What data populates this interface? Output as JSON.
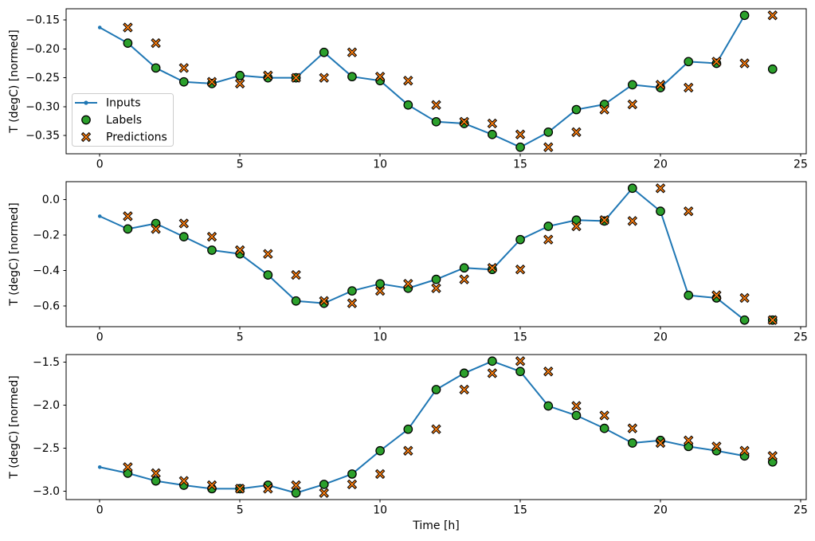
{
  "figure": {
    "xlabel": "Time [h]",
    "ylabel": "T (degC) [normed]",
    "background": "#ffffff",
    "colors": {
      "inputs_line": "#1f77b4",
      "labels_marker": "#2ca02c",
      "predictions_marker": "#ff7f0e",
      "marker_edge": "#000000",
      "axis": "#000000",
      "tick_text": "#000000",
      "legend_border": "#cccccc",
      "legend_background": "#ffffff"
    },
    "legend": {
      "position": "center left of first subplot",
      "items": [
        {
          "label": "Inputs",
          "marker": "line-dot"
        },
        {
          "label": "Labels",
          "marker": "circle"
        },
        {
          "label": "Predictions",
          "marker": "x-cross"
        }
      ]
    }
  },
  "chart_data": [
    {
      "type": "line",
      "title": "",
      "xlabel": "",
      "ylabel": "T (degC) [normed]",
      "grid": false,
      "legend": true,
      "xlim": [
        -1.2,
        25.2
      ],
      "ylim": [
        -0.3814,
        -0.1306
      ],
      "x_ticks": [
        0,
        5,
        10,
        15,
        20,
        25
      ],
      "x_tick_labels": [
        "0",
        "5",
        "10",
        "15",
        "20",
        "25"
      ],
      "y_ticks": [
        -0.15,
        -0.2,
        -0.25,
        -0.3,
        -0.35
      ],
      "y_tick_labels": [
        "−0.15",
        "−0.20",
        "−0.25",
        "−0.30",
        "−0.35"
      ],
      "series": [
        {
          "name": "Inputs",
          "style": "line-dot",
          "x": [
            0,
            1,
            2,
            3,
            4,
            5,
            6,
            7,
            8,
            9,
            10,
            11,
            12,
            13,
            14,
            15,
            16,
            17,
            18,
            19,
            20,
            21,
            22,
            23
          ],
          "y": [
            -0.163,
            -0.19,
            -0.233,
            -0.257,
            -0.26,
            -0.246,
            -0.25,
            -0.25,
            -0.206,
            -0.248,
            -0.255,
            -0.297,
            -0.326,
            -0.329,
            -0.348,
            -0.37,
            -0.344,
            -0.305,
            -0.296,
            -0.262,
            -0.267,
            -0.222,
            -0.225,
            -0.142
          ]
        },
        {
          "name": "Labels",
          "style": "circle",
          "x": [
            1,
            2,
            3,
            4,
            5,
            6,
            7,
            8,
            9,
            10,
            11,
            12,
            13,
            14,
            15,
            16,
            17,
            18,
            19,
            20,
            21,
            22,
            23,
            24
          ],
          "y": [
            -0.19,
            -0.233,
            -0.257,
            -0.26,
            -0.246,
            -0.25,
            -0.25,
            -0.206,
            -0.248,
            -0.255,
            -0.297,
            -0.326,
            -0.329,
            -0.348,
            -0.37,
            -0.344,
            -0.305,
            -0.296,
            -0.262,
            -0.267,
            -0.222,
            -0.225,
            -0.142,
            -0.235
          ]
        },
        {
          "name": "Predictions",
          "style": "x-cross",
          "x": [
            1,
            2,
            3,
            4,
            5,
            6,
            7,
            8,
            9,
            10,
            11,
            12,
            13,
            14,
            15,
            16,
            17,
            18,
            19,
            20,
            21,
            22,
            23,
            24
          ],
          "y": [
            -0.163,
            -0.19,
            -0.233,
            -0.257,
            -0.26,
            -0.246,
            -0.25,
            -0.25,
            -0.206,
            -0.248,
            -0.255,
            -0.297,
            -0.326,
            -0.329,
            -0.348,
            -0.37,
            -0.344,
            -0.305,
            -0.296,
            -0.262,
            -0.267,
            -0.222,
            -0.225,
            -0.142
          ]
        }
      ]
    },
    {
      "type": "line",
      "title": "",
      "xlabel": "",
      "ylabel": "T (degC) [normed]",
      "grid": false,
      "legend": false,
      "xlim": [
        -1.2,
        25.2
      ],
      "ylim": [
        -0.7173,
        0.1023
      ],
      "x_ticks": [
        0,
        5,
        10,
        15,
        20,
        25
      ],
      "x_tick_labels": [
        "0",
        "5",
        "10",
        "15",
        "20",
        "25"
      ],
      "y_ticks": [
        0.0,
        -0.2,
        -0.4,
        -0.6
      ],
      "y_tick_labels": [
        "0.0",
        "−0.2",
        "−0.4",
        "−0.6"
      ],
      "series": [
        {
          "name": "Inputs",
          "style": "line-dot",
          "x": [
            0,
            1,
            2,
            3,
            4,
            5,
            6,
            7,
            8,
            9,
            10,
            11,
            12,
            13,
            14,
            15,
            16,
            17,
            18,
            19,
            20,
            21,
            22,
            23
          ],
          "y": [
            -0.093,
            -0.165,
            -0.134,
            -0.209,
            -0.285,
            -0.306,
            -0.425,
            -0.572,
            -0.585,
            -0.515,
            -0.475,
            -0.5,
            -0.45,
            -0.385,
            -0.394,
            -0.225,
            -0.15,
            -0.115,
            -0.12,
            0.065,
            -0.065,
            -0.54,
            -0.555,
            -0.68
          ]
        },
        {
          "name": "Labels",
          "style": "circle",
          "x": [
            1,
            2,
            3,
            4,
            5,
            6,
            7,
            8,
            9,
            10,
            11,
            12,
            13,
            14,
            15,
            16,
            17,
            18,
            19,
            20,
            21,
            22,
            23,
            24
          ],
          "y": [
            -0.165,
            -0.134,
            -0.209,
            -0.285,
            -0.306,
            -0.425,
            -0.572,
            -0.585,
            -0.515,
            -0.475,
            -0.5,
            -0.45,
            -0.385,
            -0.394,
            -0.225,
            -0.15,
            -0.115,
            -0.12,
            0.065,
            -0.065,
            -0.54,
            -0.555,
            -0.68,
            -0.68
          ]
        },
        {
          "name": "Predictions",
          "style": "x-cross",
          "x": [
            1,
            2,
            3,
            4,
            5,
            6,
            7,
            8,
            9,
            10,
            11,
            12,
            13,
            14,
            15,
            16,
            17,
            18,
            19,
            20,
            21,
            22,
            23,
            24
          ],
          "y": [
            -0.093,
            -0.165,
            -0.134,
            -0.209,
            -0.285,
            -0.306,
            -0.425,
            -0.572,
            -0.585,
            -0.515,
            -0.475,
            -0.5,
            -0.45,
            -0.385,
            -0.394,
            -0.225,
            -0.15,
            -0.115,
            -0.12,
            0.065,
            -0.065,
            -0.54,
            -0.555,
            -0.68
          ]
        }
      ]
    },
    {
      "type": "line",
      "title": "",
      "xlabel": "Time [h]",
      "ylabel": "T (degC) [normed]",
      "grid": false,
      "legend": false,
      "xlim": [
        -1.2,
        25.2
      ],
      "ylim": [
        -3.0965,
        -1.4135
      ],
      "x_ticks": [
        0,
        5,
        10,
        15,
        20,
        25
      ],
      "x_tick_labels": [
        "0",
        "5",
        "10",
        "15",
        "20",
        "25"
      ],
      "y_ticks": [
        -1.5,
        -2.0,
        -2.5,
        -3.0
      ],
      "y_tick_labels": [
        "−1.5",
        "−2.0",
        "−2.5",
        "−3.0"
      ],
      "series": [
        {
          "name": "Inputs",
          "style": "line-dot",
          "x": [
            0,
            1,
            2,
            3,
            4,
            5,
            6,
            7,
            8,
            9,
            10,
            11,
            12,
            13,
            14,
            15,
            16,
            17,
            18,
            19,
            20,
            21,
            22,
            23
          ],
          "y": [
            -2.72,
            -2.79,
            -2.88,
            -2.93,
            -2.97,
            -2.97,
            -2.93,
            -3.02,
            -2.92,
            -2.8,
            -2.53,
            -2.28,
            -1.82,
            -1.63,
            -1.49,
            -1.61,
            -2.01,
            -2.12,
            -2.27,
            -2.44,
            -2.41,
            -2.48,
            -2.53,
            -2.59
          ]
        },
        {
          "name": "Labels",
          "style": "circle",
          "x": [
            1,
            2,
            3,
            4,
            5,
            6,
            7,
            8,
            9,
            10,
            11,
            12,
            13,
            14,
            15,
            16,
            17,
            18,
            19,
            20,
            21,
            22,
            23,
            24
          ],
          "y": [
            -2.79,
            -2.88,
            -2.93,
            -2.97,
            -2.97,
            -2.93,
            -3.02,
            -2.92,
            -2.8,
            -2.53,
            -2.28,
            -1.82,
            -1.63,
            -1.49,
            -1.61,
            -2.01,
            -2.12,
            -2.27,
            -2.44,
            -2.41,
            -2.48,
            -2.53,
            -2.59,
            -2.66
          ]
        },
        {
          "name": "Predictions",
          "style": "x-cross",
          "x": [
            1,
            2,
            3,
            4,
            5,
            6,
            7,
            8,
            9,
            10,
            11,
            12,
            13,
            14,
            15,
            16,
            17,
            18,
            19,
            20,
            21,
            22,
            23,
            24
          ],
          "y": [
            -2.72,
            -2.79,
            -2.88,
            -2.93,
            -2.97,
            -2.97,
            -2.93,
            -3.02,
            -2.92,
            -2.8,
            -2.53,
            -2.28,
            -1.82,
            -1.63,
            -1.49,
            -1.61,
            -2.01,
            -2.12,
            -2.27,
            -2.44,
            -2.41,
            -2.48,
            -2.53,
            -2.59
          ]
        }
      ]
    }
  ]
}
